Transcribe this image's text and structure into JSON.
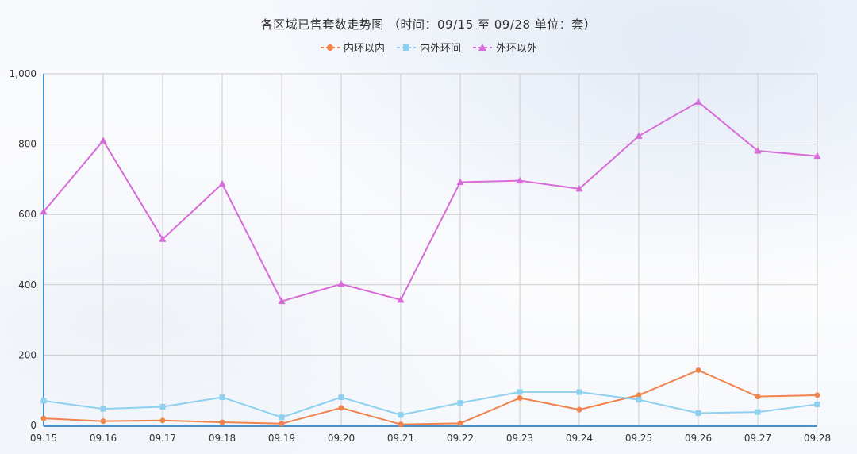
{
  "title": "各区域已售套数走势图 （时间：09/15 至 09/28    单位：套）",
  "colors": {
    "inner": "#f0834c",
    "middle": "#8ed0ef",
    "outer": "#d76bd8",
    "grid": "#cccccc",
    "axis": "#4a90c8"
  },
  "chart_data": {
    "type": "line",
    "title": "各区域已售套数走势图 （时间：09/15 至 09/28    单位：套）",
    "xlabel": "",
    "ylabel": "",
    "categories": [
      "09.15",
      "09.16",
      "09.17",
      "09.18",
      "09.19",
      "09.20",
      "09.21",
      "09.22",
      "09.23",
      "09.24",
      "09.25",
      "09.26",
      "09.27",
      "09.28"
    ],
    "ylim": [
      0,
      1000
    ],
    "yticks": [
      "0",
      "200",
      "400",
      "600",
      "800",
      "1,000"
    ],
    "ytick_values": [
      0,
      200,
      400,
      600,
      800,
      1000
    ],
    "grid": true,
    "legend_position": "top-center",
    "series": [
      {
        "name": "内环以内",
        "marker": "circle",
        "values": [
          20,
          12,
          14,
          9,
          5,
          50,
          3,
          6,
          78,
          45,
          86,
          157,
          82,
          86
        ]
      },
      {
        "name": "内外环间",
        "marker": "square",
        "values": [
          70,
          47,
          53,
          80,
          23,
          80,
          30,
          64,
          95,
          95,
          73,
          35,
          38,
          60
        ]
      },
      {
        "name": "外环以外",
        "marker": "triangle",
        "values": [
          608,
          810,
          530,
          687,
          353,
          402,
          357,
          692,
          696,
          673,
          823,
          920,
          781,
          766
        ]
      }
    ]
  }
}
